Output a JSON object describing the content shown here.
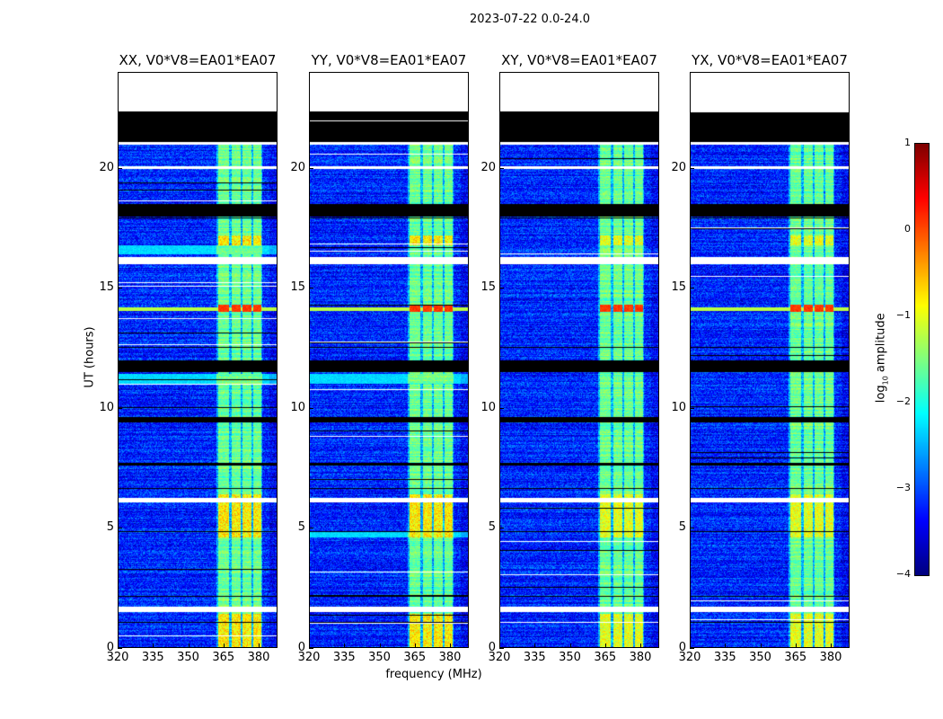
{
  "chart_data": {
    "type": "heatmap",
    "title": "2023-07-22 0.0-24.0",
    "xlabel": "frequency (MHz)",
    "ylabel": "UT (hours)",
    "xlim": [
      320,
      388
    ],
    "ylim": [
      0,
      24
    ],
    "xticks": [
      320,
      335,
      350,
      365,
      380
    ],
    "yticks": [
      0,
      5,
      10,
      15,
      20
    ],
    "panels": [
      {
        "title": "XX, V0*V8=EA01*EA07",
        "strong_horizontal_band_hours": [
          [
            11.0,
            11.4
          ],
          [
            16.4,
            16.8
          ]
        ]
      },
      {
        "title": "YY, V0*V8=EA01*EA07",
        "strong_horizontal_band_hours": [
          [
            11.0,
            11.4
          ],
          [
            4.6,
            4.8
          ]
        ]
      },
      {
        "title": "XY, V0*V8=EA01*EA07",
        "strong_horizontal_band_hours": []
      },
      {
        "title": "YX, V0*V8=EA01*EA07",
        "strong_horizontal_band_hours": []
      }
    ],
    "background_log_amplitude": -3.2,
    "rfi_bands_mhz": [
      [
        363,
        367.5
      ],
      [
        368.5,
        372.5
      ],
      [
        373.5,
        377
      ],
      [
        378,
        381.5
      ]
    ],
    "rfi_log_amplitude": -1.6,
    "bright_event_hours": [
      [
        14.0,
        14.3
      ],
      [
        0.0,
        1.4
      ],
      [
        4.6,
        6.4
      ],
      [
        16.8,
        17.2
      ]
    ],
    "flagged_white_hours": [
      [
        22.4,
        24.0
      ],
      [
        16.0,
        16.3
      ],
      [
        1.45,
        1.7
      ],
      [
        6.05,
        6.25
      ],
      [
        21.0,
        21.1
      ],
      [
        20.0,
        20.1
      ]
    ],
    "flagged_black_hours": [
      [
        21.1,
        22.4
      ],
      [
        18.0,
        18.5
      ],
      [
        11.5,
        12.0
      ],
      [
        9.4,
        9.6
      ],
      [
        7.6,
        7.7
      ],
      [
        4.8,
        4.85
      ],
      [
        12.5,
        12.55
      ],
      [
        1.0,
        1.05
      ],
      [
        2.1,
        2.15
      ],
      [
        17.9,
        17.95
      ],
      [
        6.6,
        6.65
      ]
    ],
    "colorbar": {
      "label": "log₁₀ amplitude",
      "range": [
        -4,
        1
      ],
      "ticks": [
        "−4",
        "−3",
        "−2",
        "−1",
        "0",
        "1"
      ],
      "colormap": "jet"
    }
  }
}
